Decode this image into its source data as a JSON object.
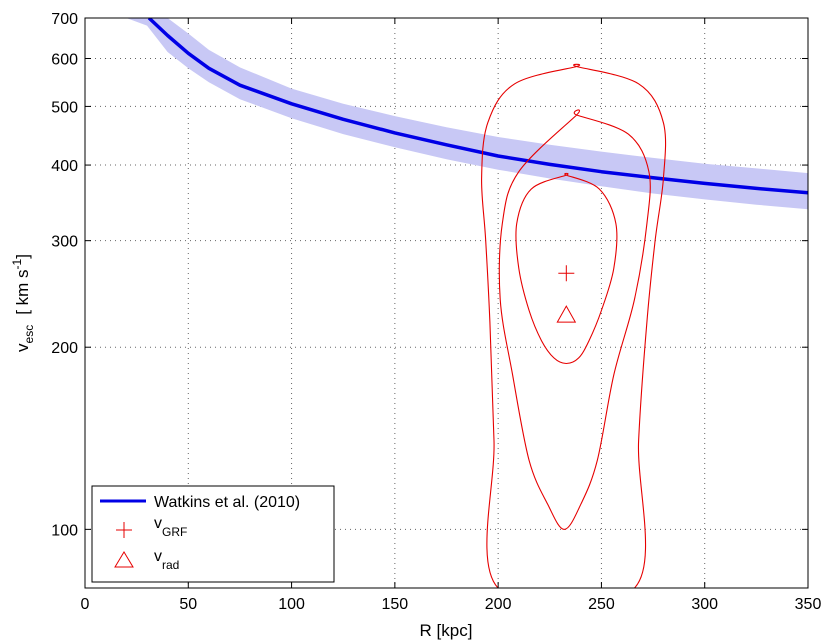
{
  "chart_data": {
    "type": "line",
    "xlabel": "R [kpc]",
    "ylabel": {
      "main": "v",
      "sub": "esc",
      "units": "[ km s",
      "sup": "-1",
      "close": "]"
    },
    "xlim": [
      0,
      350
    ],
    "ylim": [
      80,
      700
    ],
    "yscale": "log",
    "x_ticks": [
      0,
      50,
      100,
      150,
      200,
      250,
      300,
      350
    ],
    "y_ticks": [
      100,
      200,
      300,
      400,
      500,
      600,
      700
    ],
    "grid": true,
    "grid_style": "dotted",
    "legend_position": "bottom-left",
    "colors": {
      "band": "#c8c8f5",
      "line": "#0000e6",
      "contour": "#e60000",
      "grid": "#666666"
    },
    "series": [
      {
        "name": "Watkins et al. (2010)",
        "kind": "line",
        "x": [
          31,
          40,
          50,
          60,
          75,
          100,
          125,
          150,
          175,
          200,
          225,
          250,
          275,
          300,
          325,
          350
        ],
        "y": [
          700,
          655,
          612,
          578,
          542,
          505,
          476,
          452,
          432,
          414,
          401,
          390,
          381,
          373,
          366,
          360
        ]
      },
      {
        "name": "Watkins et al. (2010) range",
        "kind": "band",
        "x": [
          20,
          30,
          40,
          50,
          60,
          75,
          100,
          125,
          150,
          175,
          200,
          225,
          250,
          275,
          300,
          325,
          350
        ],
        "upper": [
          700,
          700,
          700,
          660,
          620,
          580,
          535,
          505,
          482,
          462,
          445,
          432,
          421,
          411,
          402,
          395,
          388
        ],
        "lower": [
          700,
          680,
          615,
          578,
          548,
          514,
          478,
          450,
          428,
          409,
          393,
          380,
          369,
          359,
          351,
          344,
          338
        ]
      },
      {
        "name": "vGRF",
        "legend_main": "v",
        "legend_sub": "GRF",
        "kind": "marker",
        "marker": "plus",
        "x": [
          233
        ],
        "y": [
          265
        ]
      },
      {
        "name": "vrad",
        "legend_main": "v",
        "legend_sub": "rad",
        "kind": "marker",
        "marker": "triangle",
        "x": [
          233
        ],
        "y": [
          226
        ]
      }
    ],
    "contours": [
      {
        "name": "inner",
        "x": [
          233,
          249,
          257,
          256,
          250,
          244,
          239,
          233,
          227,
          221,
          215,
          210,
          209,
          216,
          233
        ],
        "y": [
          385,
          365,
          320,
          270,
          230,
          205,
          192,
          188,
          192,
          205,
          230,
          270,
          320,
          365,
          385
        ]
      },
      {
        "name": "middle",
        "x": [
          238,
          263,
          273,
          272,
          266,
          256,
          248,
          240,
          232,
          224,
          215,
          207,
          201,
          202,
          210,
          238
        ],
        "y": [
          484,
          450,
          390,
          320,
          240,
          180,
          130,
          110,
          100,
          110,
          130,
          180,
          240,
          320,
          390,
          484
        ]
      },
      {
        "name": "outer",
        "x": [
          238,
          268,
          280,
          280,
          276,
          272,
          268,
          266,
          200,
          198,
          196,
          194,
          192,
          195,
          208,
          238
        ],
        "y": [
          582,
          545,
          470,
          380,
          300,
          220,
          140,
          80,
          80,
          140,
          220,
          300,
          380,
          470,
          545,
          582
        ]
      }
    ]
  }
}
